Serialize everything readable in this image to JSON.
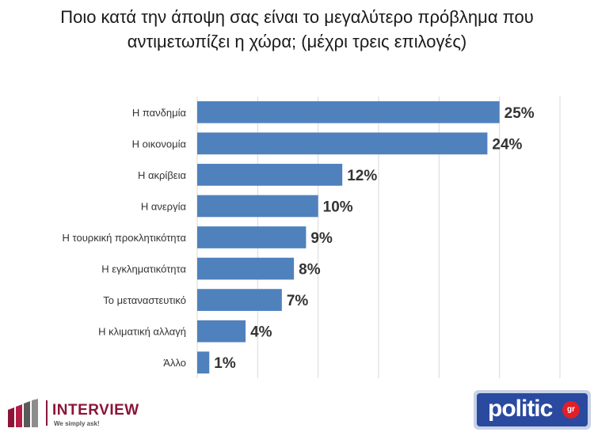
{
  "title_lines": [
    "Ποιο κατά την άποψη σας είναι το μεγαλύτερο πρόβλημα που",
    "αντιμετωπίζει η χώρα; (μέχρι τρεις επιλογές)"
  ],
  "logos": {
    "left_name": "INTERVIEW",
    "left_tagline": "We simply ask!",
    "right_word": "politic",
    "right_suffix": "gr"
  },
  "colors": {
    "bar": "#4f81bd",
    "grid": "#d9d9d9",
    "brand_left": "#8a1538",
    "brand_right": "#2a4aa0"
  },
  "chart_data": {
    "type": "bar",
    "orientation": "horizontal",
    "categories": [
      "Η πανδημία",
      "Η οικονομία",
      "Η ακρίβεια",
      "Η ανεργία",
      "Η τουρκική προκλητικότητα",
      "Η εγκληματικότητα",
      "Το μεταναστευτικό",
      "Η κλιματική αλλαγή",
      "Άλλο"
    ],
    "values": [
      25,
      24,
      12,
      10,
      9,
      8,
      7,
      4,
      1
    ],
    "value_labels": [
      "25%",
      "24%",
      "12%",
      "10%",
      "9%",
      "8%",
      "7%",
      "4%",
      "1%"
    ],
    "xlim": [
      0,
      30
    ],
    "grid": true,
    "legend": "none"
  }
}
